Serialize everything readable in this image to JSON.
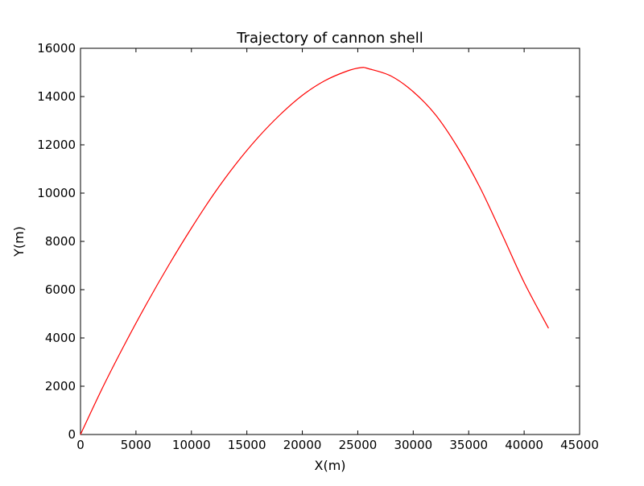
{
  "chart_data": {
    "type": "line",
    "title": "Trajectory of cannon shell",
    "xlabel": "X(m)",
    "ylabel": "Y(m)",
    "xlim": [
      0,
      45000
    ],
    "ylim": [
      0,
      16000
    ],
    "xticks": [
      0,
      5000,
      10000,
      15000,
      20000,
      25000,
      30000,
      35000,
      40000,
      45000
    ],
    "yticks": [
      0,
      2000,
      4000,
      6000,
      8000,
      10000,
      12000,
      14000,
      16000
    ],
    "xtick_labels": [
      "0",
      "5000",
      "10000",
      "15000",
      "20000",
      "25000",
      "30000",
      "35000",
      "40000",
      "45000"
    ],
    "ytick_labels": [
      "0",
      "2000",
      "4000",
      "6000",
      "8000",
      "10000",
      "12000",
      "14000",
      "16000"
    ],
    "grid": false,
    "series": [
      {
        "color": "#ff0000",
        "x": [
          0,
          2000,
          4000,
          6000,
          8000,
          10000,
          12000,
          14000,
          16000,
          18000,
          20000,
          22000,
          24000,
          25300,
          26000,
          28000,
          30000,
          32000,
          34000,
          36000,
          38000,
          40000,
          42200
        ],
        "y": [
          0,
          1950,
          3750,
          5450,
          7050,
          8550,
          9950,
          11200,
          12300,
          13250,
          14050,
          14650,
          15050,
          15200,
          15150,
          14850,
          14200,
          13250,
          11900,
          10250,
          8300,
          6300,
          4400
        ]
      }
    ]
  }
}
